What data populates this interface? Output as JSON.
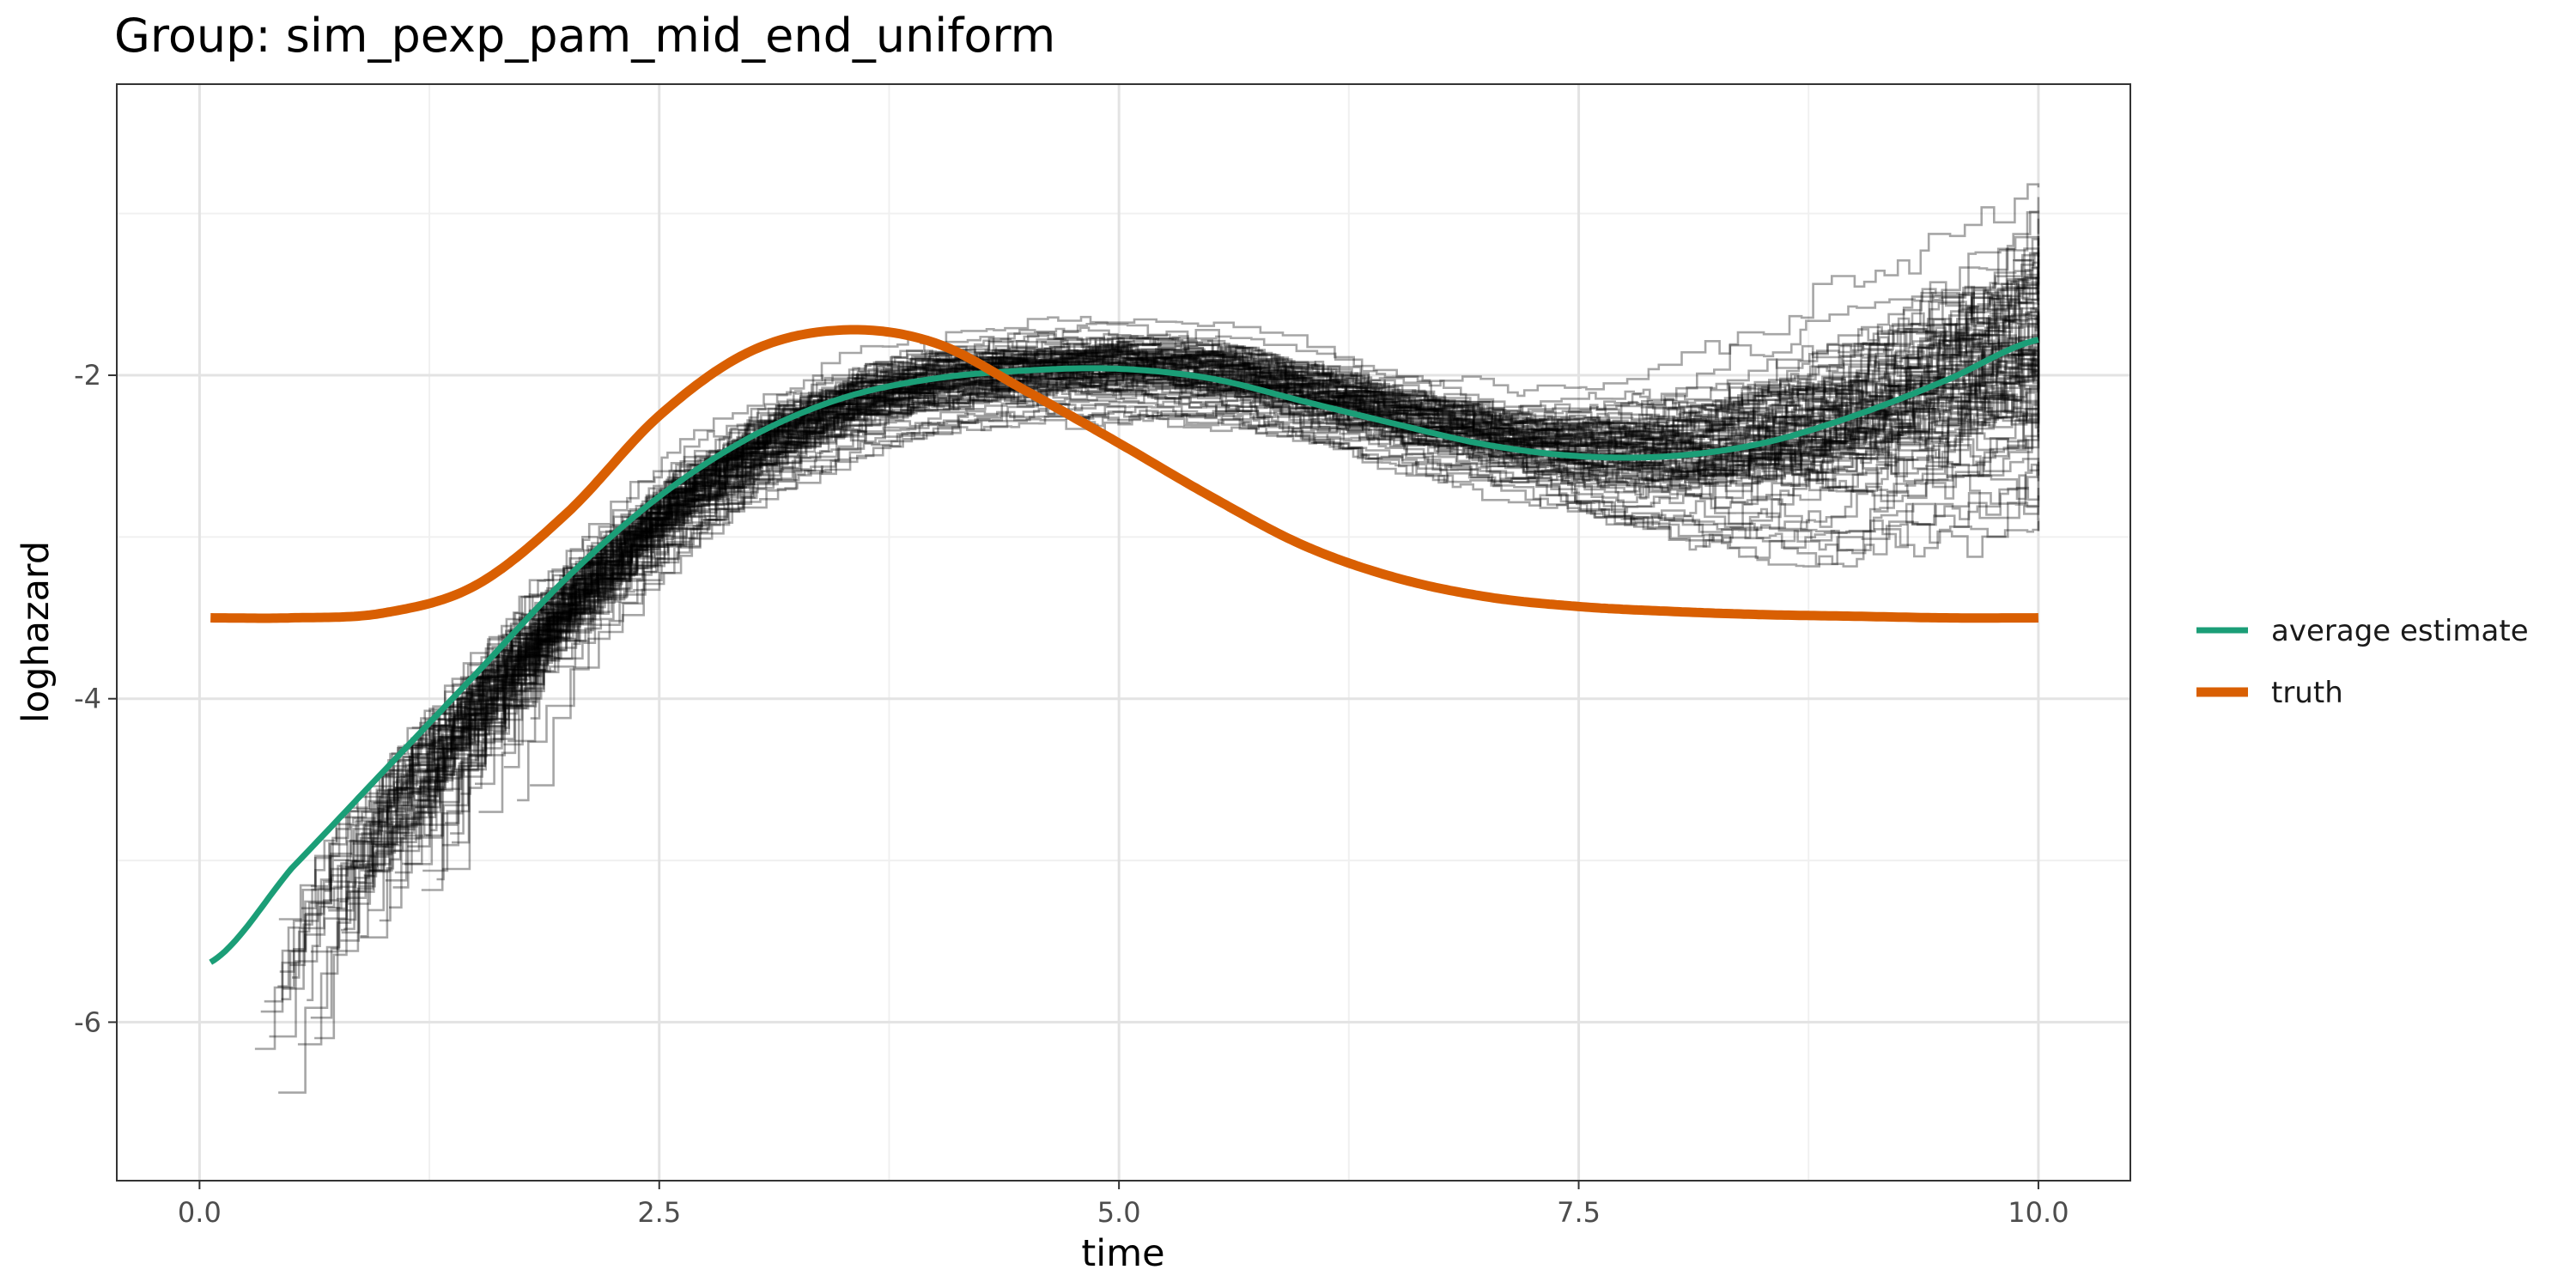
{
  "chart_data": {
    "type": "line",
    "title": "Group: sim_pexp_pam_mid_end_uniform",
    "xlabel": "time",
    "ylabel": "loghazard",
    "xlim": [
      -0.45,
      10.5
    ],
    "ylim": [
      -6.98,
      -0.2
    ],
    "x_ticks": [
      0.0,
      2.5,
      5.0,
      7.5,
      10.0
    ],
    "x_tick_labels": [
      "0.0",
      "2.5",
      "5.0",
      "7.5",
      "10.0"
    ],
    "y_ticks": [
      -2,
      -4,
      -6
    ],
    "y_tick_labels": [
      "-2",
      "-4",
      "-6"
    ],
    "grid": true,
    "legend_position": "right",
    "colors": {
      "average_estimate": "#1b9e77",
      "truth": "#d95f02",
      "replicates": "#000000"
    },
    "series": [
      {
        "name": "average estimate",
        "x": [
          0.06,
          0.5,
          1.0,
          1.5,
          2.0,
          2.5,
          3.0,
          3.5,
          4.0,
          4.5,
          5.0,
          5.5,
          6.0,
          6.5,
          7.0,
          7.5,
          8.0,
          8.5,
          9.0,
          9.5,
          10.0
        ],
        "values": [
          -5.63,
          -5.05,
          -4.45,
          -3.85,
          -3.25,
          -2.75,
          -2.38,
          -2.14,
          -2.02,
          -1.97,
          -1.96,
          -2.02,
          -2.16,
          -2.3,
          -2.43,
          -2.5,
          -2.5,
          -2.42,
          -2.25,
          -2.03,
          -1.78
        ]
      },
      {
        "name": "truth",
        "x": [
          0.06,
          0.5,
          1.0,
          1.5,
          2.0,
          2.5,
          3.0,
          3.5,
          4.0,
          4.5,
          5.0,
          5.5,
          6.0,
          6.5,
          7.0,
          7.5,
          8.0,
          8.5,
          9.0,
          9.5,
          10.0
        ],
        "values": [
          -3.5,
          -3.5,
          -3.47,
          -3.3,
          -2.85,
          -2.25,
          -1.85,
          -1.72,
          -1.8,
          -2.1,
          -2.42,
          -2.75,
          -3.05,
          -3.25,
          -3.37,
          -3.43,
          -3.46,
          -3.48,
          -3.49,
          -3.5,
          -3.5
        ]
      }
    ],
    "replicates": {
      "count": 100,
      "opacity": 0.35,
      "x_end": 10.0
    }
  }
}
